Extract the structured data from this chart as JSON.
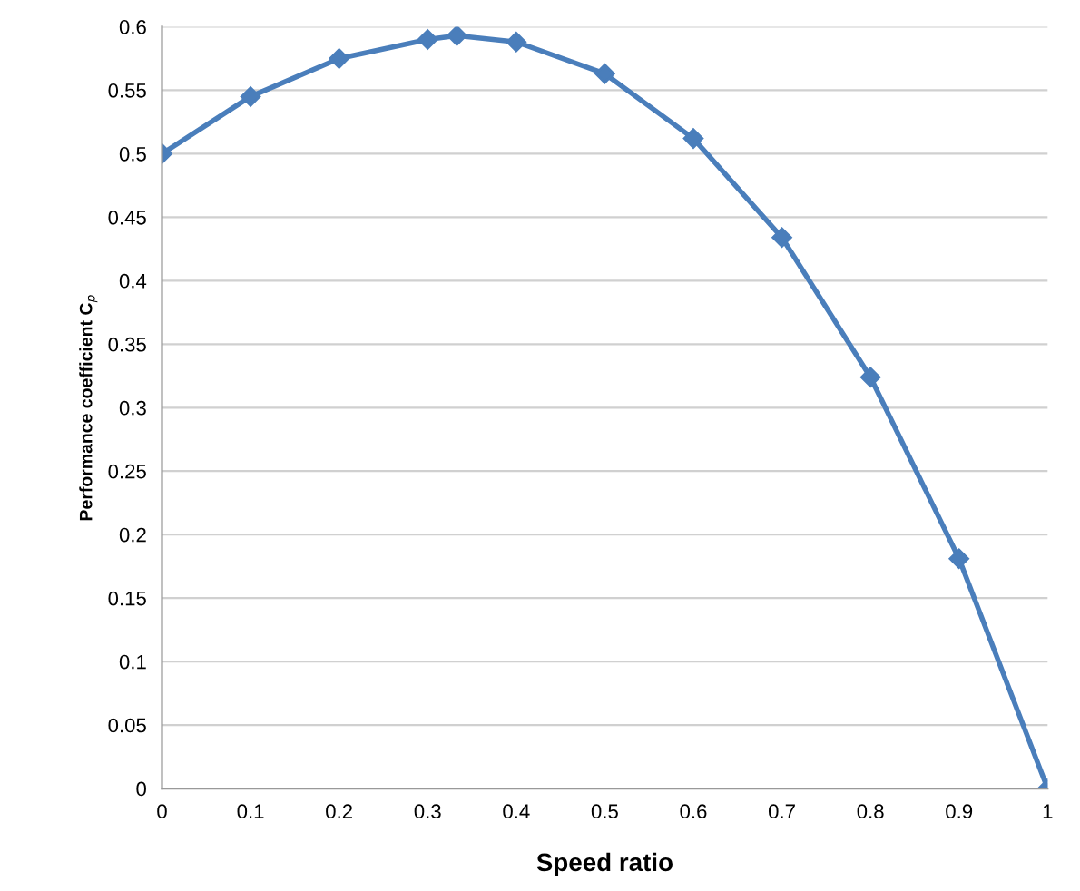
{
  "chart_data": {
    "type": "line",
    "xlabel": "Speed ratio",
    "ylabel": "Performance coefficient C$_{p}$",
    "x": [
      0,
      0.1,
      0.2,
      0.3,
      0.333,
      0.4,
      0.5,
      0.6,
      0.7,
      0.8,
      0.9,
      1
    ],
    "series": [
      {
        "color": "#4a7ebb",
        "values": [
          0.5,
          0.545,
          0.575,
          0.59,
          0.593,
          0.588,
          0.563,
          0.512,
          0.434,
          0.324,
          0.181,
          0
        ]
      }
    ],
    "xlim": [
      0,
      1
    ],
    "xticks": [
      0,
      0.1,
      0.2,
      0.3,
      0.4,
      0.5,
      0.6,
      0.7,
      0.8,
      0.9,
      1
    ],
    "ylim": [
      0,
      0.6
    ],
    "yticks": [
      0,
      0.05,
      0.1,
      0.15,
      0.2,
      0.25,
      0.3,
      0.35,
      0.4,
      0.45,
      0.5,
      0.55,
      0.6
    ],
    "grid": "y",
    "marker": "diamond",
    "line_style": "solid",
    "legend": false
  }
}
